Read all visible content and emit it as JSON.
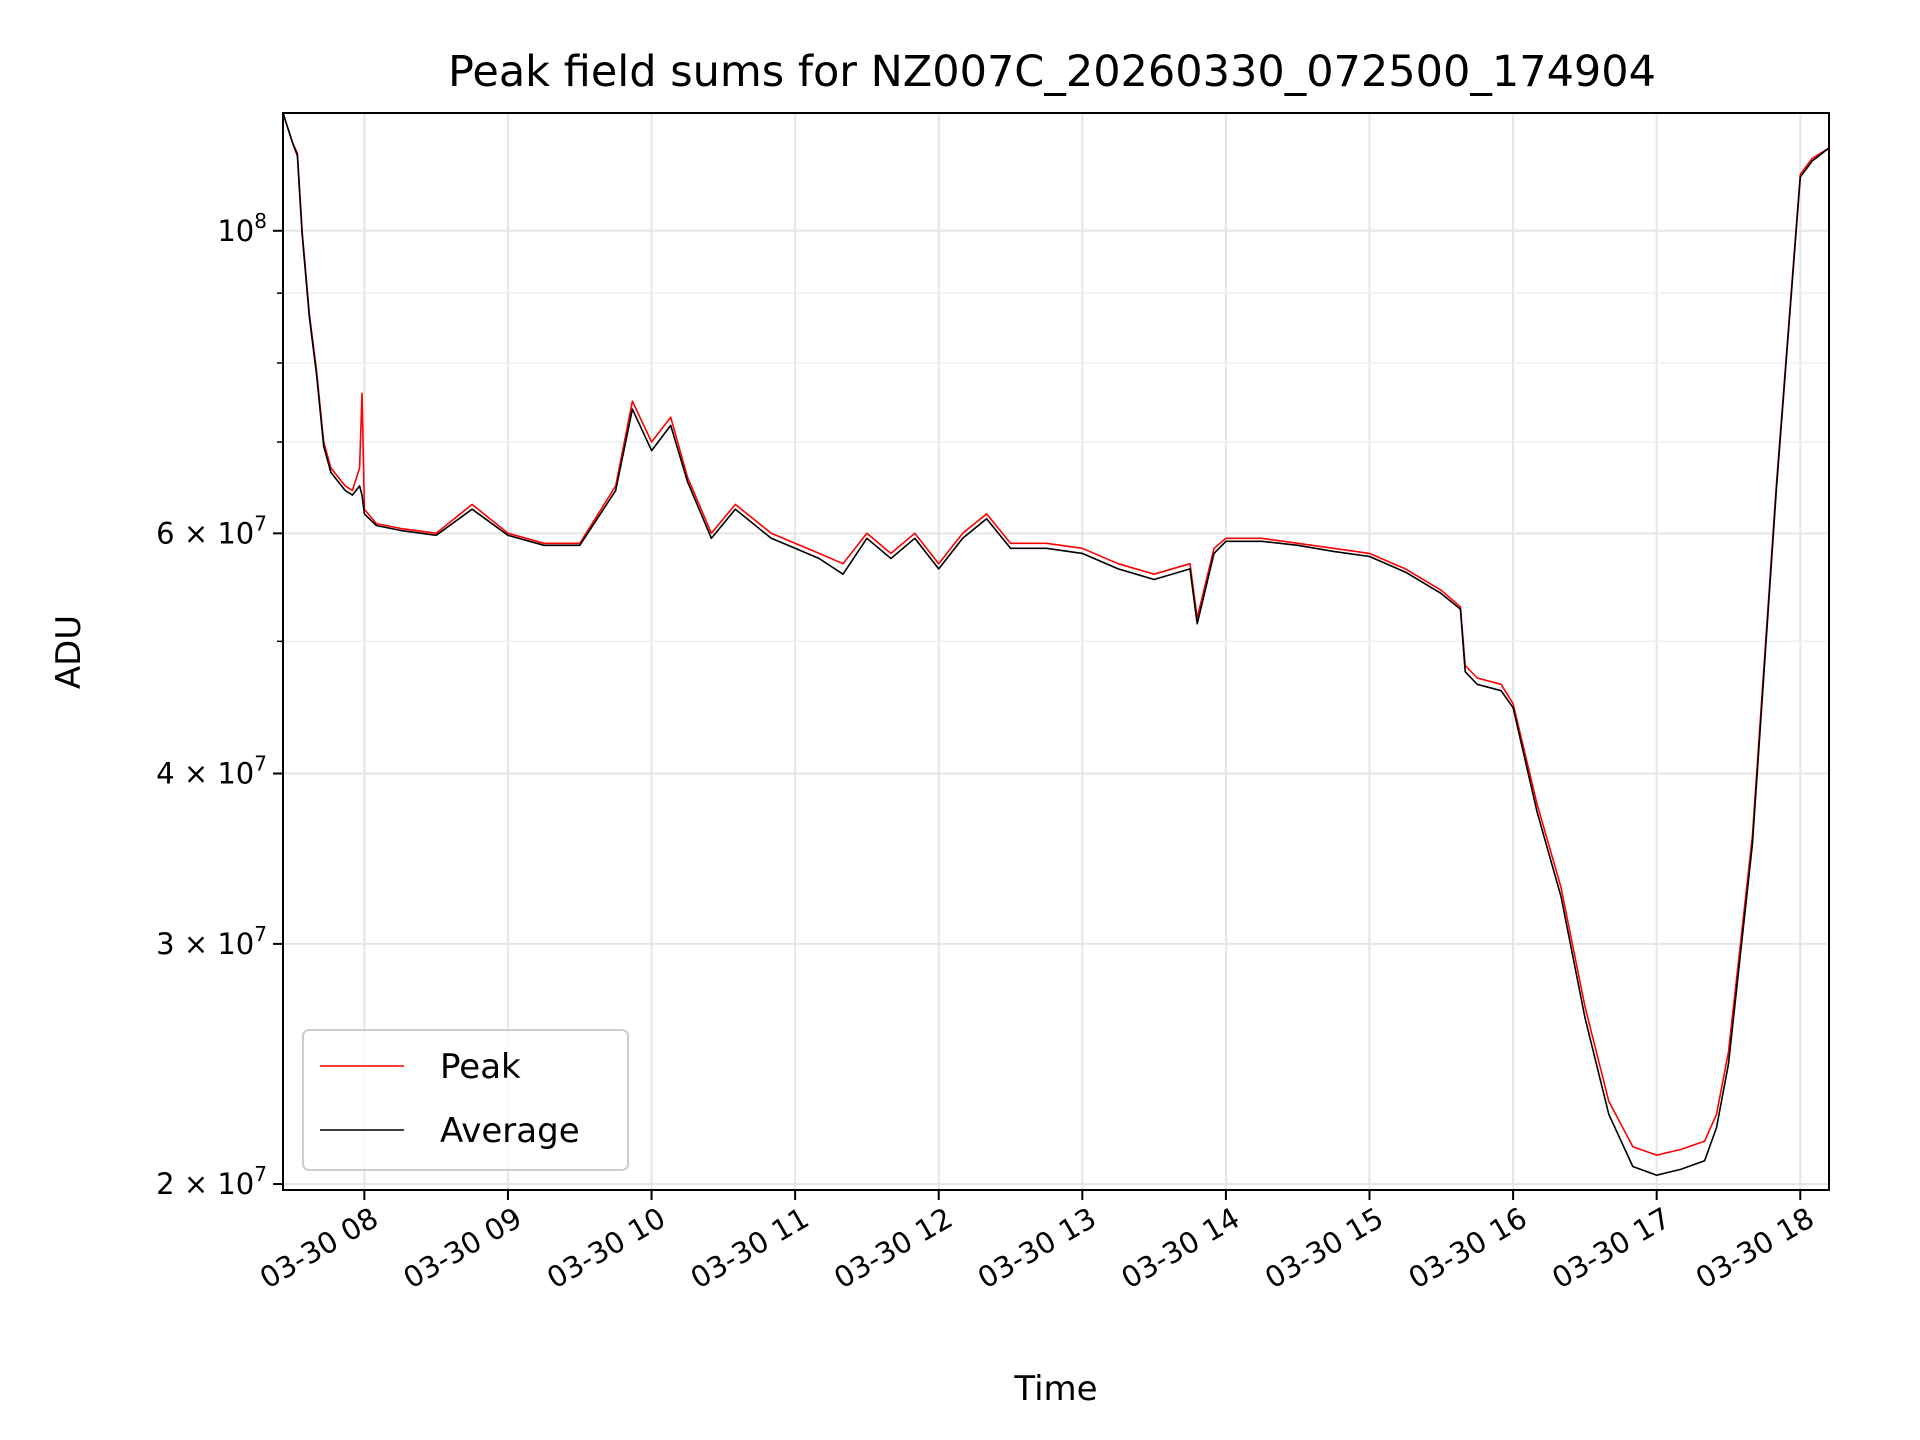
{
  "chart_data": {
    "type": "line",
    "title": "Peak field sums for NZ007C_20260330_072500_174904",
    "xlabel": "Time",
    "ylabel": "ADU",
    "x_axis": "time",
    "y_scale": "log",
    "xlim": [
      "2026-03-30 07:26",
      "2026-03-30 18:12"
    ],
    "ylim": [
      19800000,
      122000000
    ],
    "x_ticks": [
      {
        "value": "2026-03-30 08:00",
        "label": "03-30 08"
      },
      {
        "value": "2026-03-30 09:00",
        "label": "03-30 09"
      },
      {
        "value": "2026-03-30 10:00",
        "label": "03-30 10"
      },
      {
        "value": "2026-03-30 11:00",
        "label": "03-30 11"
      },
      {
        "value": "2026-03-30 12:00",
        "label": "03-30 12"
      },
      {
        "value": "2026-03-30 13:00",
        "label": "03-30 13"
      },
      {
        "value": "2026-03-30 14:00",
        "label": "03-30 14"
      },
      {
        "value": "2026-03-30 15:00",
        "label": "03-30 15"
      },
      {
        "value": "2026-03-30 16:00",
        "label": "03-30 16"
      },
      {
        "value": "2026-03-30 17:00",
        "label": "03-30 17"
      },
      {
        "value": "2026-03-30 18:00",
        "label": "03-30 18"
      }
    ],
    "y_ticks": [
      {
        "value": 20000000,
        "mantissa": "2",
        "exp": "7"
      },
      {
        "value": 30000000,
        "mantissa": "3",
        "exp": "7"
      },
      {
        "value": 40000000,
        "mantissa": "4",
        "exp": "7"
      },
      {
        "value": 60000000,
        "mantissa": "6",
        "exp": "7"
      },
      {
        "value": 100000000,
        "mantissa": "",
        "exp": "8"
      }
    ],
    "y_minor_ticks": [
      50000000,
      70000000,
      80000000,
      90000000
    ],
    "grid": true,
    "legend": "lower-left",
    "series": [
      {
        "name": "Peak",
        "color": "#ff0000",
        "x": [
          "2026-03-30 07:26",
          "2026-03-30 07:30",
          "2026-03-30 07:32",
          "2026-03-30 07:34",
          "2026-03-30 07:37",
          "2026-03-30 07:40",
          "2026-03-30 07:43",
          "2026-03-30 07:46",
          "2026-03-30 07:49",
          "2026-03-30 07:52",
          "2026-03-30 07:55",
          "2026-03-30 07:58",
          "2026-03-30 07:59",
          "2026-03-30 08:00",
          "2026-03-30 08:05",
          "2026-03-30 08:15",
          "2026-03-30 08:30",
          "2026-03-30 08:45",
          "2026-03-30 09:00",
          "2026-03-30 09:15",
          "2026-03-30 09:30",
          "2026-03-30 09:45",
          "2026-03-30 09:52",
          "2026-03-30 10:00",
          "2026-03-30 10:08",
          "2026-03-30 10:15",
          "2026-03-30 10:25",
          "2026-03-30 10:35",
          "2026-03-30 10:50",
          "2026-03-30 11:00",
          "2026-03-30 11:10",
          "2026-03-30 11:20",
          "2026-03-30 11:30",
          "2026-03-30 11:40",
          "2026-03-30 11:50",
          "2026-03-30 12:00",
          "2026-03-30 12:10",
          "2026-03-30 12:20",
          "2026-03-30 12:30",
          "2026-03-30 12:45",
          "2026-03-30 13:00",
          "2026-03-30 13:15",
          "2026-03-30 13:30",
          "2026-03-30 13:45",
          "2026-03-30 13:48",
          "2026-03-30 13:55",
          "2026-03-30 14:00",
          "2026-03-30 14:15",
          "2026-03-30 14:30",
          "2026-03-30 14:45",
          "2026-03-30 15:00",
          "2026-03-30 15:15",
          "2026-03-30 15:30",
          "2026-03-30 15:38",
          "2026-03-30 15:40",
          "2026-03-30 15:45",
          "2026-03-30 15:55",
          "2026-03-30 16:00",
          "2026-03-30 16:10",
          "2026-03-30 16:20",
          "2026-03-30 16:30",
          "2026-03-30 16:40",
          "2026-03-30 16:50",
          "2026-03-30 17:00",
          "2026-03-30 17:10",
          "2026-03-30 17:20",
          "2026-03-30 17:25",
          "2026-03-30 17:30",
          "2026-03-30 17:40",
          "2026-03-30 17:50",
          "2026-03-30 18:00",
          "2026-03-30 18:05",
          "2026-03-30 18:12"
        ],
        "values": [
          122000000,
          116000000,
          114000000,
          100000000,
          87000000,
          79000000,
          70000000,
          67000000,
          66000000,
          65000000,
          64500000,
          67000000,
          76000000,
          62500000,
          61000000,
          60500000,
          60000000,
          63000000,
          60000000,
          59000000,
          59000000,
          65000000,
          75000000,
          70000000,
          73000000,
          66000000,
          60000000,
          63000000,
          60000000,
          59000000,
          58000000,
          57000000,
          60000000,
          58000000,
          60000000,
          57000000,
          60000000,
          62000000,
          59000000,
          59000000,
          58500000,
          57000000,
          56000000,
          57000000,
          52000000,
          58500000,
          59500000,
          59500000,
          59000000,
          58500000,
          58000000,
          56500000,
          54500000,
          53000000,
          48000000,
          47000000,
          46500000,
          45000000,
          38000000,
          33000000,
          27000000,
          23000000,
          21300000,
          21000000,
          21200000,
          21500000,
          22500000,
          25000000,
          36000000,
          65000000,
          110000000,
          113000000,
          115000000
        ]
      },
      {
        "name": "Average",
        "color": "#000000",
        "x": [
          "2026-03-30 07:26",
          "2026-03-30 07:30",
          "2026-03-30 07:32",
          "2026-03-30 07:34",
          "2026-03-30 07:37",
          "2026-03-30 07:40",
          "2026-03-30 07:43",
          "2026-03-30 07:46",
          "2026-03-30 07:49",
          "2026-03-30 07:52",
          "2026-03-30 07:55",
          "2026-03-30 07:58",
          "2026-03-30 07:59",
          "2026-03-30 08:00",
          "2026-03-30 08:05",
          "2026-03-30 08:15",
          "2026-03-30 08:30",
          "2026-03-30 08:45",
          "2026-03-30 09:00",
          "2026-03-30 09:15",
          "2026-03-30 09:30",
          "2026-03-30 09:45",
          "2026-03-30 09:52",
          "2026-03-30 10:00",
          "2026-03-30 10:08",
          "2026-03-30 10:15",
          "2026-03-30 10:25",
          "2026-03-30 10:35",
          "2026-03-30 10:50",
          "2026-03-30 11:00",
          "2026-03-30 11:10",
          "2026-03-30 11:20",
          "2026-03-30 11:30",
          "2026-03-30 11:40",
          "2026-03-30 11:50",
          "2026-03-30 12:00",
          "2026-03-30 12:10",
          "2026-03-30 12:20",
          "2026-03-30 12:30",
          "2026-03-30 12:45",
          "2026-03-30 13:00",
          "2026-03-30 13:15",
          "2026-03-30 13:30",
          "2026-03-30 13:45",
          "2026-03-30 13:48",
          "2026-03-30 13:55",
          "2026-03-30 14:00",
          "2026-03-30 14:15",
          "2026-03-30 14:30",
          "2026-03-30 14:45",
          "2026-03-30 15:00",
          "2026-03-30 15:15",
          "2026-03-30 15:30",
          "2026-03-30 15:38",
          "2026-03-30 15:40",
          "2026-03-30 15:45",
          "2026-03-30 15:55",
          "2026-03-30 16:00",
          "2026-03-30 16:10",
          "2026-03-30 16:20",
          "2026-03-30 16:30",
          "2026-03-30 16:40",
          "2026-03-30 16:50",
          "2026-03-30 17:00",
          "2026-03-30 17:10",
          "2026-03-30 17:20",
          "2026-03-30 17:25",
          "2026-03-30 17:30",
          "2026-03-30 17:40",
          "2026-03-30 17:50",
          "2026-03-30 18:00",
          "2026-03-30 18:05",
          "2026-03-30 18:12"
        ],
        "values": [
          122000000,
          116000000,
          113500000,
          99500000,
          86500000,
          78500000,
          69500000,
          66500000,
          65500000,
          64500000,
          64000000,
          65000000,
          64000000,
          62000000,
          60800000,
          60300000,
          59800000,
          62500000,
          59800000,
          58800000,
          58800000,
          64500000,
          74000000,
          69000000,
          72000000,
          65500000,
          59500000,
          62500000,
          59500000,
          58500000,
          57500000,
          56000000,
          59500000,
          57500000,
          59500000,
          56500000,
          59500000,
          61500000,
          58500000,
          58500000,
          58000000,
          56500000,
          55500000,
          56500000,
          51500000,
          58000000,
          59200000,
          59200000,
          58800000,
          58200000,
          57700000,
          56200000,
          54200000,
          52800000,
          47500000,
          46500000,
          46000000,
          44700000,
          37500000,
          32500000,
          26500000,
          22500000,
          20600000,
          20300000,
          20500000,
          20800000,
          22000000,
          24500000,
          35500000,
          64500000,
          109500000,
          112500000,
          115000000
        ]
      }
    ]
  }
}
